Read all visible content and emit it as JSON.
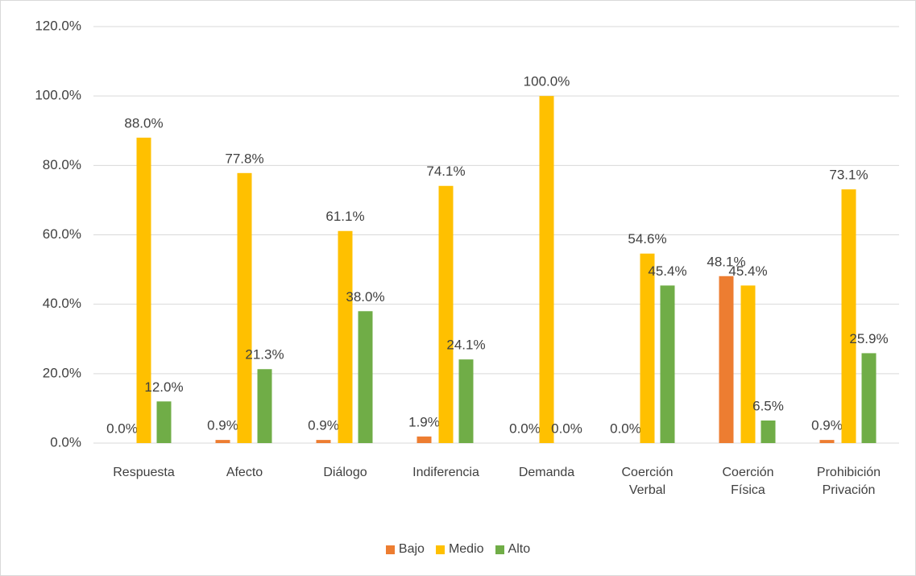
{
  "chart_data": {
    "type": "bar",
    "categories": [
      "Respuesta",
      "Afecto",
      "Diálogo",
      "Indiferencia",
      "Demanda",
      "Coerción Verbal",
      "Coerción Física",
      "Prohibición Privación"
    ],
    "series": [
      {
        "name": "Bajo",
        "color": "#ed7d31",
        "values": [
          0,
          0.9,
          0.9,
          1.9,
          0,
          0,
          48.1,
          0.9
        ],
        "value_labels": [
          "0.0%",
          "0.9%",
          "0.9%",
          "1.9%",
          "0.0%",
          "0.0%",
          "48.1%",
          "0.9%"
        ]
      },
      {
        "name": "Medio",
        "color": "#ffc000",
        "values": [
          88,
          77.8,
          61.1,
          74.1,
          100,
          54.6,
          45.4,
          73.1
        ],
        "value_labels": [
          "88.0%",
          "77.8%",
          "61.1%",
          "74.1%",
          "100.0%",
          "54.6%",
          "45.4%",
          "73.1%"
        ]
      },
      {
        "name": "Alto",
        "color": "#70ad47",
        "values": [
          12,
          21.3,
          38,
          24.1,
          0,
          45.4,
          6.5,
          25.9
        ],
        "value_labels": [
          "12.0%",
          "21.3%",
          "38.0%",
          "24.1%",
          "0.0%",
          "45.4%",
          "6.5%",
          "25.9%"
        ]
      }
    ],
    "ylim": [
      0,
      120
    ],
    "yticks": [
      {
        "value": 0,
        "label": "0.0%"
      },
      {
        "value": 20,
        "label": "20.0%"
      },
      {
        "value": 40,
        "label": "40.0%"
      },
      {
        "value": 60,
        "label": "60.0%"
      },
      {
        "value": 80,
        "label": "80.0%"
      },
      {
        "value": 100,
        "label": "100.0%"
      },
      {
        "value": 120,
        "label": "120.0%"
      }
    ],
    "grid": true,
    "legend": "bottom"
  }
}
